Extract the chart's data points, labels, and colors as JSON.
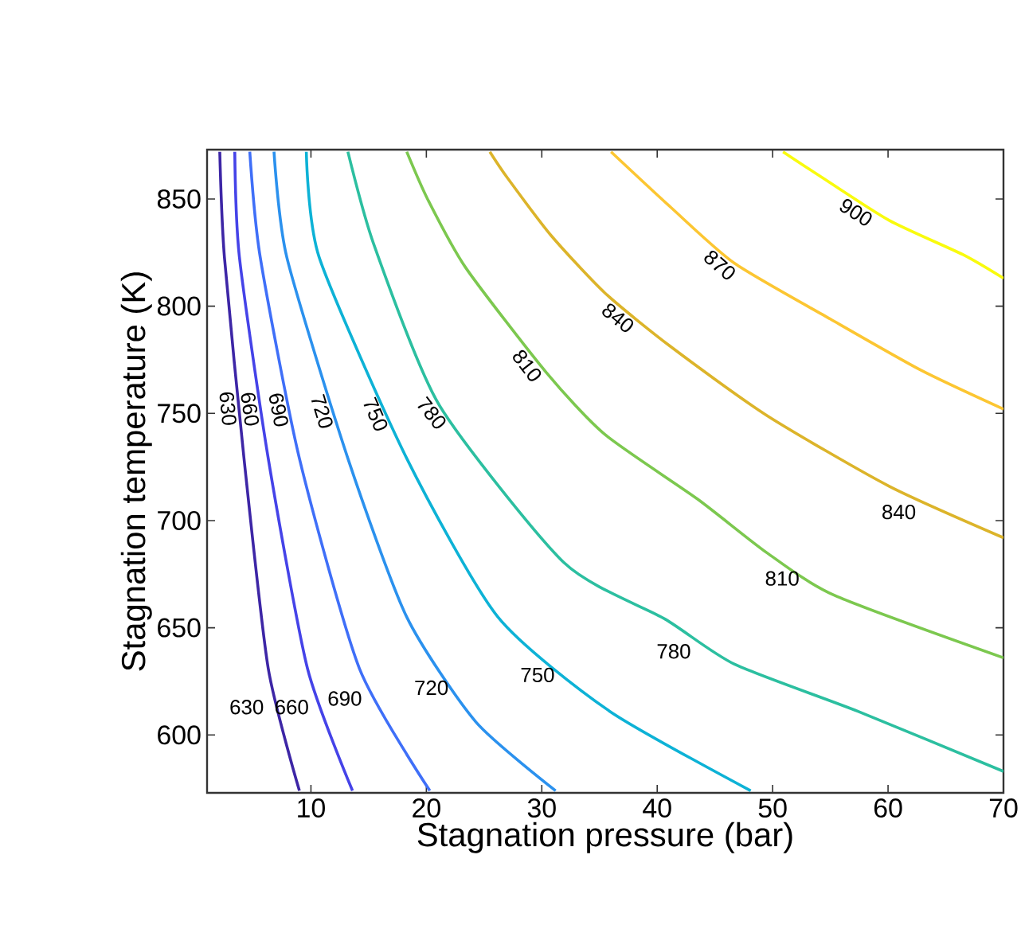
{
  "chart_data": {
    "type": "line",
    "xlabel": "Stagnation pressure (bar)",
    "ylabel": "Stagnation temperature (K)",
    "xlim": [
      1,
      70
    ],
    "ylim": [
      573,
      873
    ],
    "xticks": [
      10,
      20,
      30,
      40,
      50,
      60,
      70
    ],
    "yticks": [
      600,
      650,
      700,
      750,
      800,
      850
    ],
    "legend": false,
    "series": [
      {
        "name": "630",
        "color": "#3d26a6",
        "x": [
          2.1,
          2.5,
          4.2,
          6.3,
          9.0
        ],
        "values": [
          872,
          823,
          729,
          631,
          574
        ]
      },
      {
        "name": "660",
        "color": "#4543e8",
        "x": [
          3.4,
          3.8,
          6.3,
          9.7,
          13.6
        ],
        "values": [
          872,
          823,
          729,
          631,
          574
        ]
      },
      {
        "name": "690",
        "color": "#3f6ff8",
        "x": [
          4.7,
          5.6,
          9.0,
          14.2,
          20.3
        ],
        "values": [
          872,
          823,
          729,
          631,
          574
        ]
      },
      {
        "name": "720",
        "color": "#2b91ee",
        "x": [
          6.8,
          7.9,
          13.2,
          18.3,
          24.3,
          31.2
        ],
        "values": [
          872,
          823,
          729,
          655,
          606,
          574
        ]
      },
      {
        "name": "750",
        "color": "#0db2d6",
        "x": [
          9.6,
          10.7,
          18.3,
          26.2,
          35.9,
          48.1
        ],
        "values": [
          872,
          823,
          729,
          655,
          611,
          574
        ]
      },
      {
        "name": "780",
        "color": "#2cbfa0",
        "x": [
          13.2,
          15.5,
          21.1,
          32,
          40.7,
          46.7,
          57.4,
          70
        ],
        "values": [
          872,
          828,
          754,
          680,
          654,
          633,
          611,
          583
        ]
      },
      {
        "name": "810",
        "color": "#7cc84f",
        "x": [
          18.3,
          20.1,
          23.4,
          30.4,
          35.5,
          43.5,
          49.5,
          55.4,
          70
        ],
        "values": [
          872,
          850,
          818,
          769,
          740,
          710,
          685,
          665,
          636
        ]
      },
      {
        "name": "840",
        "color": "#dcb42a",
        "x": [
          25.5,
          27.0,
          30.8,
          35.5,
          41.2,
          49.5,
          60.1,
          70
        ],
        "values": [
          872,
          860,
          833,
          806,
          781,
          749,
          716,
          692
        ]
      },
      {
        "name": "870",
        "color": "#fcc632",
        "x": [
          36.0,
          41.2,
          46.7,
          55.0,
          62.9,
          70
        ],
        "values": [
          872,
          846,
          820,
          794,
          770,
          752
        ]
      },
      {
        "name": "900",
        "color": "#f9fb0e",
        "x": [
          50.9,
          54.0,
          60.1,
          66.5,
          70
        ],
        "values": [
          872,
          861,
          840,
          824,
          813
        ]
      }
    ],
    "annotations": [
      {
        "text": "630",
        "x": 6.5,
        "y": 613
      },
      {
        "text": "660",
        "x": 10.4,
        "y": 613
      },
      {
        "text": "690",
        "x": 15.0,
        "y": 617
      },
      {
        "text": "720",
        "x": 22.5,
        "y": 622
      },
      {
        "text": "750",
        "x": 31.7,
        "y": 628
      },
      {
        "text": "780",
        "x": 43.5,
        "y": 639
      },
      {
        "text": "810",
        "x": 52.9,
        "y": 673
      },
      {
        "text": "840",
        "x": 63.0,
        "y": 704
      }
    ]
  }
}
